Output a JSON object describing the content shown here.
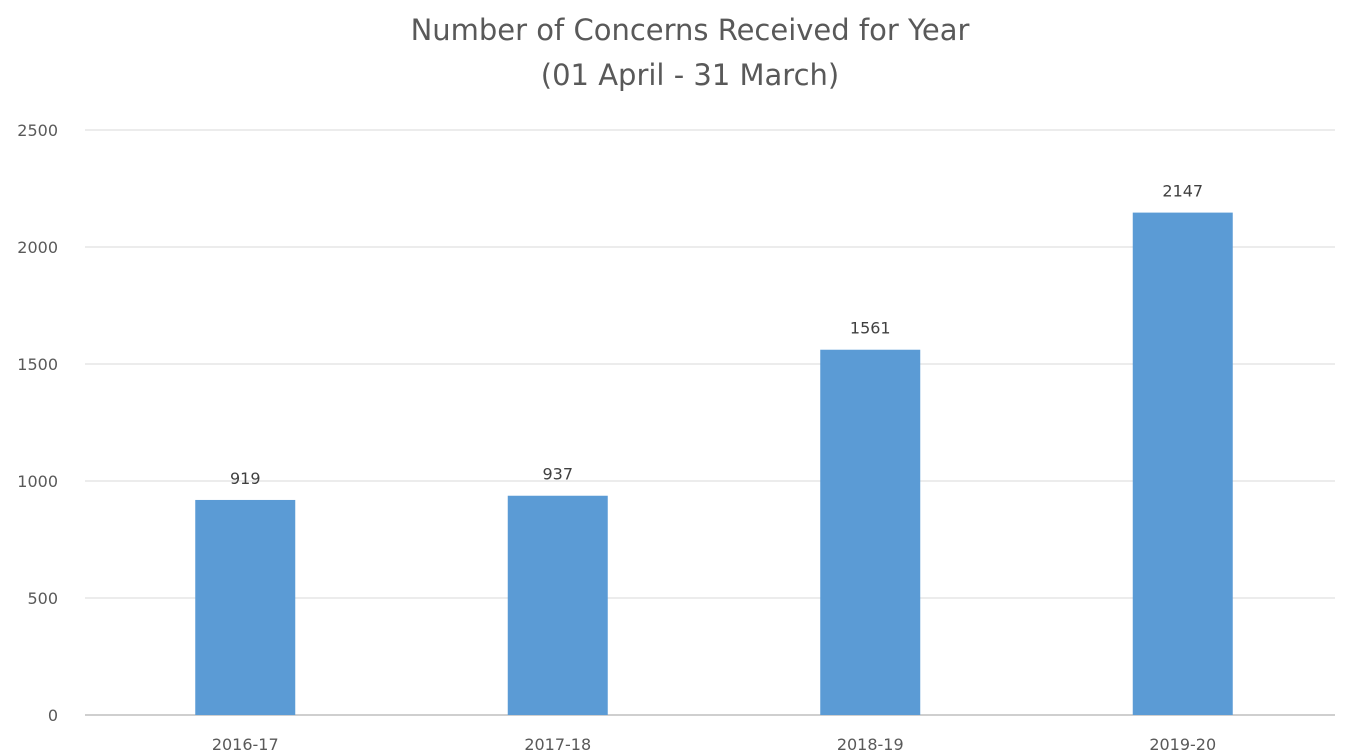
{
  "chart_data": {
    "type": "bar",
    "title_lines": [
      "Number of Concerns Received for Year",
      "(01 April - 31 March)"
    ],
    "xlabel": "",
    "ylabel": "",
    "categories": [
      "2016-17",
      "2017-18",
      "2018-19",
      "2019-20"
    ],
    "values": [
      919,
      937,
      1561,
      2147
    ],
    "data_labels": [
      "919",
      "937",
      "1561",
      "2147"
    ],
    "y_ticks": [
      0,
      500,
      1000,
      1500,
      2000,
      2500
    ],
    "y_tick_labels": [
      "0",
      "500",
      "1000",
      "1500",
      "2000",
      "2500"
    ],
    "ylim": [
      0,
      2500
    ],
    "grid": true,
    "legend": "none",
    "colors": {
      "bar": "#5b9bd5",
      "grid": "#d9d9d9",
      "axis": "#bfbfbf"
    }
  }
}
